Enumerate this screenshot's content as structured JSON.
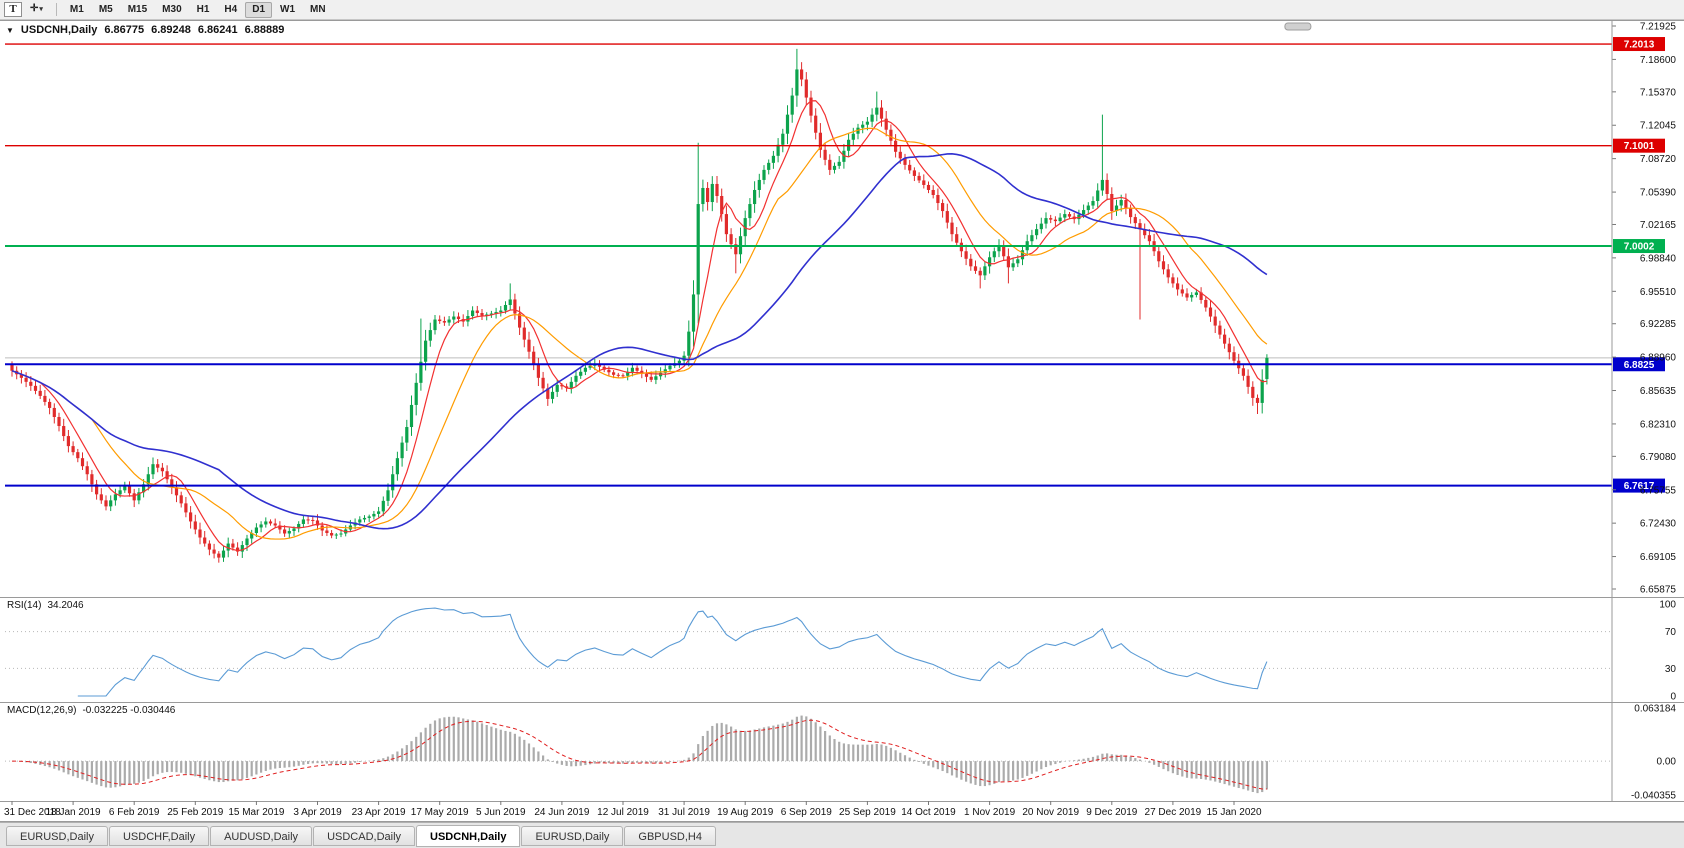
{
  "icons": {
    "collapse_arrow": "▼",
    "caret_down": "▾"
  },
  "toolbar": {
    "text_tool": "T",
    "crosshair_tool": "✛",
    "active_timeframe": "D1",
    "timeframes": [
      "M1",
      "M5",
      "M15",
      "M30",
      "H1",
      "H4",
      "D1",
      "W1",
      "MN"
    ]
  },
  "chart": {
    "title": "USDCNH,Daily",
    "ohlc": {
      "open": "6.86775",
      "high": "6.89248",
      "low": "6.86241",
      "close": "6.88889"
    },
    "bid_price": 6.8889,
    "colors": {
      "up": "#0ca34c",
      "down": "#e02b2b",
      "ma_fast": "#f23131",
      "ma_mid": "#ff9c00",
      "ma_slow": "#3030cf",
      "rsi_line": "#5b9bd5",
      "macd_hist": "#ababab",
      "macd_signal": "#e02020"
    },
    "price_scale": [
      "7.21925",
      "7.18600",
      "7.15370",
      "7.12045",
      "7.08720",
      "7.05390",
      "7.02165",
      "6.98840",
      "6.95510",
      "6.92285",
      "6.88960",
      "6.85635",
      "6.82310",
      "6.79080",
      "6.75755",
      "6.72430",
      "6.69105",
      "6.65875"
    ],
    "hlines": [
      {
        "price": 7.2013,
        "label": "7.2013",
        "color": "#dd0000",
        "width": 1.4
      },
      {
        "price": 7.1001,
        "label": "7.1001",
        "color": "#dd0000",
        "width": 1.4
      },
      {
        "price": 7.0002,
        "label": "7.0002",
        "color": "#00b050",
        "width": 2
      },
      {
        "price": 6.8825,
        "label": "6.8825",
        "color": "#0000cc",
        "width": 2
      },
      {
        "price": 6.7617,
        "label": "6.7617",
        "color": "#0000cc",
        "width": 2
      }
    ]
  },
  "indicators": {
    "rsi": {
      "label": "RSI(14)",
      "value": "34.2046",
      "scale": [
        "100",
        "70",
        "30",
        "0"
      ],
      "levels": [
        70,
        30
      ]
    },
    "macd": {
      "label": "MACD(12,26,9)",
      "values": "-0.032225 -0.030446",
      "scale": [
        "0.063184",
        "0.00",
        "-0.040355"
      ]
    }
  },
  "dates": [
    "31 Dec 2018",
    "18 Jan 2019",
    "6 Feb 2019",
    "25 Feb 2019",
    "15 Mar 2019",
    "3 Apr 2019",
    "23 Apr 2019",
    "17 May 2019",
    "5 Jun 2019",
    "24 Jun 2019",
    "12 Jul 2019",
    "31 Jul 2019",
    "19 Aug 2019",
    "6 Sep 2019",
    "25 Sep 2019",
    "14 Oct 2019",
    "1 Nov 2019",
    "20 Nov 2019",
    "9 Dec 2019",
    "27 Dec 2019",
    "15 Jan 2020"
  ],
  "tabs": [
    {
      "label": "EURUSD,Daily",
      "active": false
    },
    {
      "label": "USDCHF,Daily",
      "active": false
    },
    {
      "label": "AUDUSD,Daily",
      "active": false
    },
    {
      "label": "USDCAD,Daily",
      "active": false
    },
    {
      "label": "USDCNH,Daily",
      "active": true
    },
    {
      "label": "EURUSD,Daily",
      "active": false
    },
    {
      "label": "GBPUSD,H4",
      "active": false
    }
  ],
  "chart_data": {
    "type": "candlestick",
    "symbol": "USDCNH",
    "timeframe": "Daily",
    "candle_count": 268,
    "first_open": 6.882,
    "x_label_every": 13,
    "price_axis": {
      "top": 7.21925,
      "bottom": 6.65875
    },
    "rsi_period": 14,
    "macd": {
      "fast": 12,
      "slow": 26,
      "signal": 9
    },
    "rsi_range": [
      0,
      100
    ],
    "macd_range": [
      -0.040355,
      0.063184
    ],
    "ma": [
      {
        "period": 7,
        "color": "#f23131",
        "width": 1.2
      },
      {
        "period": 18,
        "color": "#ff9c00",
        "width": 1.2
      },
      {
        "period": 45,
        "color": "#3030cf",
        "width": 1.6
      }
    ],
    "close_anchors": [
      [
        0,
        6.876
      ],
      [
        2,
        6.869
      ],
      [
        4,
        6.861
      ],
      [
        6,
        6.851
      ],
      [
        8,
        6.839
      ],
      [
        10,
        6.821
      ],
      [
        12,
        6.801
      ],
      [
        14,
        6.789
      ],
      [
        16,
        6.773
      ],
      [
        18,
        6.753
      ],
      [
        20,
        6.741
      ],
      [
        22,
        6.753
      ],
      [
        24,
        6.761
      ],
      [
        26,
        6.747
      ],
      [
        28,
        6.763
      ],
      [
        30,
        6.783
      ],
      [
        32,
        6.776
      ],
      [
        34,
        6.76
      ],
      [
        36,
        6.744
      ],
      [
        38,
        6.726
      ],
      [
        40,
        6.71
      ],
      [
        42,
        6.698
      ],
      [
        44,
        6.69
      ],
      [
        46,
        6.704
      ],
      [
        48,
        6.696
      ],
      [
        50,
        6.709
      ],
      [
        52,
        6.72
      ],
      [
        54,
        6.726
      ],
      [
        56,
        6.722
      ],
      [
        58,
        6.714
      ],
      [
        60,
        6.719
      ],
      [
        62,
        6.728
      ],
      [
        64,
        6.727
      ],
      [
        66,
        6.717
      ],
      [
        68,
        6.712
      ],
      [
        70,
        6.714
      ],
      [
        72,
        6.722
      ],
      [
        74,
        6.728
      ],
      [
        76,
        6.731
      ],
      [
        78,
        6.736
      ],
      [
        80,
        6.757
      ],
      [
        82,
        6.789
      ],
      [
        84,
        6.82
      ],
      [
        86,
        6.864
      ],
      [
        88,
        6.906
      ],
      [
        90,
        6.927
      ],
      [
        92,
        6.924
      ],
      [
        94,
        6.93
      ],
      [
        96,
        6.925
      ],
      [
        98,
        6.936
      ],
      [
        100,
        6.931
      ],
      [
        102,
        6.933
      ],
      [
        104,
        6.936
      ],
      [
        106,
        6.947
      ],
      [
        108,
        6.919
      ],
      [
        110,
        6.895
      ],
      [
        112,
        6.869
      ],
      [
        114,
        6.848
      ],
      [
        116,
        6.862
      ],
      [
        118,
        6.859
      ],
      [
        120,
        6.871
      ],
      [
        122,
        6.879
      ],
      [
        124,
        6.883
      ],
      [
        126,
        6.877
      ],
      [
        128,
        6.872
      ],
      [
        130,
        6.871
      ],
      [
        132,
        6.879
      ],
      [
        134,
        6.873
      ],
      [
        136,
        6.867
      ],
      [
        138,
        6.874
      ],
      [
        140,
        6.881
      ],
      [
        142,
        6.886
      ],
      [
        143,
        6.891
      ],
      [
        144,
        6.915
      ],
      [
        145,
        6.952
      ],
      [
        146,
        7.042
      ],
      [
        147,
        7.058
      ],
      [
        148,
        7.044
      ],
      [
        149,
        7.062
      ],
      [
        150,
        7.05
      ],
      [
        151,
        7.032
      ],
      [
        152,
        7.012
      ],
      [
        154,
        6.992
      ],
      [
        156,
        7.028
      ],
      [
        158,
        7.056
      ],
      [
        160,
        7.076
      ],
      [
        162,
        7.09
      ],
      [
        164,
        7.112
      ],
      [
        166,
        7.15
      ],
      [
        167,
        7.176
      ],
      [
        168,
        7.166
      ],
      [
        170,
        7.13
      ],
      [
        172,
        7.096
      ],
      [
        174,
        7.076
      ],
      [
        176,
        7.084
      ],
      [
        178,
        7.106
      ],
      [
        180,
        7.118
      ],
      [
        182,
        7.124
      ],
      [
        184,
        7.138
      ],
      [
        186,
        7.116
      ],
      [
        188,
        7.094
      ],
      [
        190,
        7.081
      ],
      [
        192,
        7.07
      ],
      [
        194,
        7.061
      ],
      [
        196,
        7.051
      ],
      [
        198,
        7.035
      ],
      [
        200,
        7.012
      ],
      [
        202,
        6.995
      ],
      [
        204,
        6.98
      ],
      [
        206,
        6.971
      ],
      [
        208,
        6.989
      ],
      [
        210,
        7.001
      ],
      [
        212,
        6.979
      ],
      [
        214,
        6.987
      ],
      [
        216,
        7.005
      ],
      [
        218,
        7.017
      ],
      [
        220,
        7.028
      ],
      [
        222,
        7.025
      ],
      [
        224,
        7.032
      ],
      [
        226,
        7.027
      ],
      [
        228,
        7.036
      ],
      [
        230,
        7.045
      ],
      [
        232,
        7.066
      ],
      [
        233,
        7.052
      ],
      [
        234,
        7.035
      ],
      [
        236,
        7.046
      ],
      [
        238,
        7.029
      ],
      [
        240,
        7.017
      ],
      [
        242,
        7.005
      ],
      [
        244,
        6.985
      ],
      [
        246,
        6.969
      ],
      [
        248,
        6.957
      ],
      [
        250,
        6.949
      ],
      [
        252,
        6.954
      ],
      [
        254,
        6.939
      ],
      [
        256,
        6.921
      ],
      [
        258,
        6.903
      ],
      [
        260,
        6.886
      ],
      [
        262,
        6.871
      ],
      [
        264,
        6.849
      ],
      [
        265,
        6.844
      ],
      [
        266,
        6.867
      ],
      [
        267,
        6.889
      ]
    ],
    "overrides": [
      {
        "i": 87,
        "h": 6.928
      },
      {
        "i": 106,
        "h": 6.963
      },
      {
        "i": 146,
        "h": 7.103
      },
      {
        "i": 154,
        "l": 6.973
      },
      {
        "i": 167,
        "h": 7.1965
      },
      {
        "i": 184,
        "h": 7.154
      },
      {
        "i": 206,
        "l": 6.958
      },
      {
        "i": 212,
        "l": 6.963
      },
      {
        "i": 232,
        "h": 7.131
      },
      {
        "i": 240,
        "l": 6.927
      },
      {
        "i": 265,
        "l": 6.833
      },
      {
        "i": 267,
        "o": 6.86775,
        "h": 6.89248,
        "l": 6.86241,
        "c": 6.88889
      }
    ]
  }
}
